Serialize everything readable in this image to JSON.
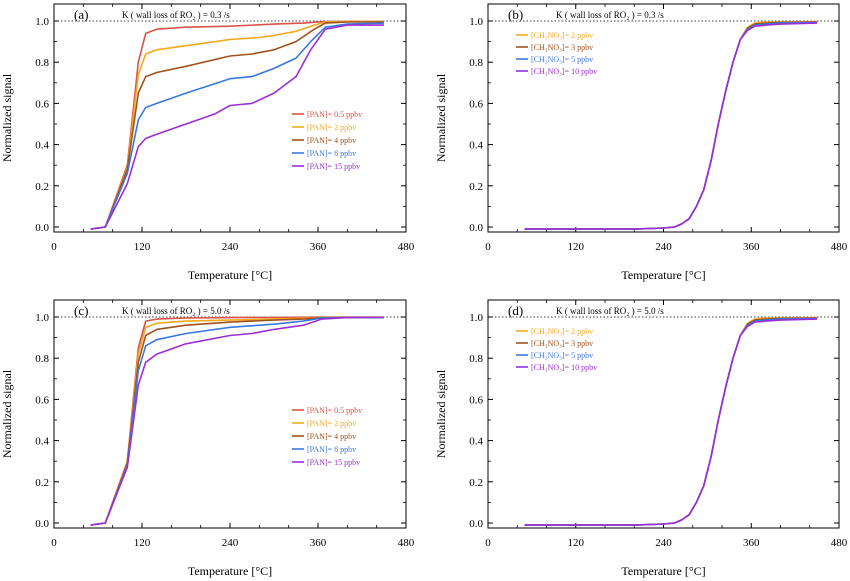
{
  "colors": {
    "red": "#d9534a",
    "orange": "#f2a81d",
    "brown": "#a0521c",
    "blue": "#3a78e0",
    "purple": "#9a2fd6"
  },
  "xlabel": "Temperature [°C]",
  "ylabel": "Normalized signal",
  "chart_data": [
    {
      "type": "line",
      "panel": "(a)",
      "title": "K ( wall loss of RO₂ ) = 0.3 /s",
      "xlabel": "Temperature [°C]",
      "ylabel": "Normalized signal",
      "xlim": [
        0,
        480
      ],
      "ylim": [
        0,
        1.05
      ],
      "xticks": [
        0,
        120,
        240,
        360,
        480
      ],
      "yticks": [
        "0.0",
        "0.2",
        "0.4",
        "0.6",
        "0.8",
        "1.0"
      ],
      "legend_position": "center-right",
      "series": [
        {
          "name": "[PAN]= 0.5 ppbv",
          "color": "red",
          "x": [
            50,
            70,
            100,
            115,
            125,
            140,
            180,
            240,
            300,
            340,
            360,
            372,
            400,
            450
          ],
          "y": [
            -0.01,
            0.0,
            0.3,
            0.8,
            0.94,
            0.96,
            0.97,
            0.975,
            0.985,
            0.99,
            0.995,
            0.997,
            0.998,
            0.998
          ]
        },
        {
          "name": "[PAN]= 2 ppbv",
          "color": "orange",
          "x": [
            50,
            70,
            100,
            115,
            125,
            140,
            180,
            240,
            280,
            300,
            330,
            355,
            370,
            400,
            450
          ],
          "y": [
            -0.01,
            0.0,
            0.29,
            0.74,
            0.84,
            0.86,
            0.88,
            0.91,
            0.92,
            0.93,
            0.95,
            0.98,
            0.995,
            0.997,
            0.997
          ]
        },
        {
          "name": "[PAN]= 4 ppbv",
          "color": "brown",
          "x": [
            50,
            70,
            100,
            115,
            125,
            140,
            180,
            240,
            270,
            300,
            330,
            355,
            370,
            400,
            450
          ],
          "y": [
            -0.01,
            0.0,
            0.28,
            0.65,
            0.73,
            0.75,
            0.78,
            0.83,
            0.84,
            0.86,
            0.9,
            0.96,
            0.99,
            0.995,
            0.995
          ]
        },
        {
          "name": "[PAN]= 8 ppbv",
          "color": "blue",
          "x": [
            50,
            70,
            100,
            115,
            125,
            140,
            180,
            240,
            270,
            300,
            330,
            350,
            370,
            400,
            450
          ],
          "y": [
            -0.01,
            0.0,
            0.26,
            0.52,
            0.58,
            0.6,
            0.65,
            0.72,
            0.73,
            0.77,
            0.82,
            0.9,
            0.97,
            0.985,
            0.99
          ]
        },
        {
          "name": "[PAN]= 15 ppbv",
          "color": "purple",
          "x": [
            50,
            70,
            100,
            115,
            125,
            140,
            180,
            220,
            240,
            270,
            300,
            330,
            350,
            370,
            400,
            450
          ],
          "y": [
            -0.01,
            0.0,
            0.21,
            0.39,
            0.43,
            0.45,
            0.5,
            0.55,
            0.59,
            0.6,
            0.65,
            0.73,
            0.86,
            0.96,
            0.98,
            0.98
          ]
        }
      ]
    },
    {
      "type": "line",
      "panel": "(b)",
      "title": "K ( wall loss of RO₂ ) = 0.3 /s",
      "xlabel": "Temperature [°C]",
      "ylabel": "Normalized signal",
      "xlim": [
        0,
        480
      ],
      "ylim": [
        0,
        1.05
      ],
      "xticks": [
        0,
        120,
        240,
        360,
        480
      ],
      "yticks": [
        "0.0",
        "0.2",
        "0.4",
        "0.6",
        "0.8",
        "1.0"
      ],
      "legend_position": "top-left",
      "series": [
        {
          "name": "[CH₃NO₃]= 2 ppbv",
          "color": "orange",
          "x": [
            50,
            200,
            240,
            255,
            265,
            275,
            285,
            295,
            305,
            315,
            325,
            335,
            345,
            355,
            365,
            380,
            400,
            450
          ],
          "y": [
            -0.01,
            -0.01,
            -0.005,
            0.0,
            0.015,
            0.04,
            0.1,
            0.18,
            0.32,
            0.5,
            0.66,
            0.8,
            0.91,
            0.97,
            0.99,
            0.995,
            0.995,
            0.997
          ]
        },
        {
          "name": "[CH₃NO₃]= 3 ppbv",
          "color": "brown",
          "x": [
            50,
            200,
            240,
            255,
            265,
            275,
            285,
            295,
            305,
            315,
            325,
            335,
            345,
            355,
            365,
            380,
            400,
            450
          ],
          "y": [
            -0.01,
            -0.01,
            -0.005,
            0.0,
            0.015,
            0.04,
            0.1,
            0.18,
            0.32,
            0.5,
            0.66,
            0.8,
            0.91,
            0.965,
            0.985,
            0.99,
            0.993,
            0.995
          ]
        },
        {
          "name": "[CH₃NO₃]= 5 ppbv",
          "color": "blue",
          "x": [
            50,
            200,
            240,
            255,
            265,
            275,
            285,
            295,
            305,
            315,
            325,
            335,
            345,
            355,
            365,
            380,
            400,
            450
          ],
          "y": [
            -0.01,
            -0.01,
            -0.005,
            0.0,
            0.015,
            0.04,
            0.1,
            0.18,
            0.32,
            0.5,
            0.66,
            0.8,
            0.91,
            0.96,
            0.98,
            0.985,
            0.99,
            0.993
          ]
        },
        {
          "name": "[CH₃NO₃]= 10 ppbv",
          "color": "purple",
          "x": [
            50,
            200,
            240,
            255,
            265,
            275,
            285,
            295,
            305,
            315,
            325,
            335,
            345,
            355,
            365,
            380,
            400,
            450
          ],
          "y": [
            -0.01,
            -0.01,
            -0.005,
            0.0,
            0.015,
            0.04,
            0.1,
            0.18,
            0.32,
            0.5,
            0.66,
            0.8,
            0.91,
            0.955,
            0.975,
            0.98,
            0.985,
            0.99
          ]
        }
      ]
    },
    {
      "type": "line",
      "panel": "(c)",
      "title": "K ( wall loss of RO₂ ) = 5.0 /s",
      "xlabel": "Temperature [°C]",
      "ylabel": "Normalized signal",
      "xlim": [
        0,
        480
      ],
      "ylim": [
        0,
        1.05
      ],
      "xticks": [
        0,
        120,
        240,
        360,
        480
      ],
      "yticks": [
        "0.0",
        "0.2",
        "0.4",
        "0.6",
        "0.8",
        "1.0"
      ],
      "legend_position": "center-right",
      "series": [
        {
          "name": "[PAN]= 0.5 ppbv",
          "color": "red",
          "x": [
            50,
            70,
            100,
            115,
            125,
            140,
            180,
            240,
            300,
            360,
            400,
            450
          ],
          "y": [
            -0.01,
            0.0,
            0.3,
            0.85,
            0.98,
            0.99,
            0.995,
            0.997,
            0.998,
            0.999,
            0.999,
            0.999
          ]
        },
        {
          "name": "[PAN]= 2 ppbv",
          "color": "orange",
          "x": [
            50,
            70,
            100,
            115,
            125,
            140,
            180,
            240,
            300,
            350,
            370,
            400,
            450
          ],
          "y": [
            -0.01,
            0.0,
            0.3,
            0.82,
            0.95,
            0.97,
            0.98,
            0.985,
            0.99,
            0.995,
            0.998,
            0.999,
            0.999
          ]
        },
        {
          "name": "[PAN]= 4 ppbv",
          "color": "brown",
          "x": [
            50,
            70,
            100,
            115,
            125,
            140,
            180,
            240,
            300,
            340,
            365,
            400,
            450
          ],
          "y": [
            -0.01,
            0.0,
            0.29,
            0.78,
            0.91,
            0.94,
            0.96,
            0.975,
            0.985,
            0.99,
            0.997,
            0.998,
            0.998
          ]
        },
        {
          "name": "[PAN]= 8 ppbv",
          "color": "blue",
          "x": [
            50,
            70,
            100,
            115,
            125,
            140,
            180,
            240,
            300,
            340,
            365,
            400,
            450
          ],
          "y": [
            -0.01,
            0.0,
            0.28,
            0.74,
            0.86,
            0.89,
            0.92,
            0.95,
            0.965,
            0.98,
            0.995,
            0.997,
            0.998
          ]
        },
        {
          "name": "[PAN]= 15 ppbv",
          "color": "purple",
          "x": [
            50,
            70,
            100,
            115,
            125,
            140,
            180,
            240,
            270,
            300,
            340,
            365,
            400,
            450
          ],
          "y": [
            -0.01,
            0.0,
            0.27,
            0.67,
            0.78,
            0.82,
            0.87,
            0.91,
            0.92,
            0.94,
            0.96,
            0.99,
            0.997,
            0.998
          ]
        }
      ]
    },
    {
      "type": "line",
      "panel": "(d)",
      "title": "K ( wall loss of RO₂ ) = 5.0 /s",
      "xlabel": "Temperature [°C]",
      "ylabel": "Normalized signal",
      "xlim": [
        0,
        480
      ],
      "ylim": [
        0,
        1.05
      ],
      "xticks": [
        0,
        120,
        240,
        360,
        480
      ],
      "yticks": [
        "0.0",
        "0.2",
        "0.4",
        "0.6",
        "0.8",
        "1.0"
      ],
      "legend_position": "top-left",
      "series": [
        {
          "name": "[CH₃NO₃]= 2 ppbv",
          "color": "orange",
          "x": [
            50,
            200,
            240,
            255,
            265,
            275,
            285,
            295,
            305,
            315,
            325,
            335,
            345,
            355,
            365,
            380,
            400,
            450
          ],
          "y": [
            -0.01,
            -0.01,
            -0.005,
            0.0,
            0.015,
            0.04,
            0.1,
            0.18,
            0.32,
            0.5,
            0.66,
            0.8,
            0.91,
            0.97,
            0.99,
            0.995,
            0.995,
            0.997
          ]
        },
        {
          "name": "[CH₃NO₃]= 3 ppbv",
          "color": "brown",
          "x": [
            50,
            200,
            240,
            255,
            265,
            275,
            285,
            295,
            305,
            315,
            325,
            335,
            345,
            355,
            365,
            380,
            400,
            450
          ],
          "y": [
            -0.01,
            -0.01,
            -0.005,
            0.0,
            0.015,
            0.04,
            0.1,
            0.18,
            0.32,
            0.5,
            0.66,
            0.8,
            0.91,
            0.965,
            0.985,
            0.99,
            0.993,
            0.995
          ]
        },
        {
          "name": "[CH₃NO₃]= 5 ppbv",
          "color": "blue",
          "x": [
            50,
            200,
            240,
            255,
            265,
            275,
            285,
            295,
            305,
            315,
            325,
            335,
            345,
            355,
            365,
            380,
            400,
            450
          ],
          "y": [
            -0.01,
            -0.01,
            -0.005,
            0.0,
            0.015,
            0.04,
            0.1,
            0.18,
            0.32,
            0.5,
            0.66,
            0.8,
            0.91,
            0.96,
            0.98,
            0.985,
            0.99,
            0.993
          ]
        },
        {
          "name": "[CH₃NO₃]= 10 ppbv",
          "color": "purple",
          "x": [
            50,
            200,
            240,
            255,
            265,
            275,
            285,
            295,
            305,
            315,
            325,
            335,
            345,
            355,
            365,
            380,
            400,
            450
          ],
          "y": [
            -0.01,
            -0.01,
            -0.005,
            0.0,
            0.015,
            0.04,
            0.1,
            0.18,
            0.32,
            0.5,
            0.66,
            0.8,
            0.91,
            0.955,
            0.975,
            0.98,
            0.985,
            0.99
          ]
        }
      ]
    }
  ]
}
